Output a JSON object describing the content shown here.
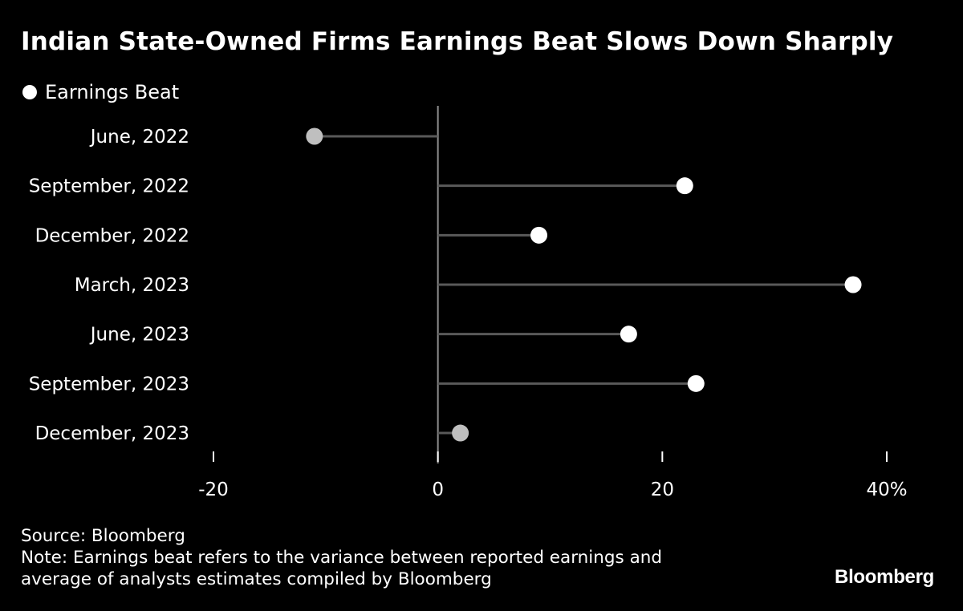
{
  "title": "Indian State-Owned Firms Earnings Beat Slows Down Sharply",
  "legend": {
    "label": "Earnings Beat",
    "color": "#ffffff"
  },
  "footer": {
    "source": "Source: Bloomberg",
    "note_line1": "Note: Earnings beat refers to the variance between reported earnings and",
    "note_line2": "average of analysts estimates compiled by Bloomberg"
  },
  "logo": "Bloomberg",
  "colors": {
    "background": "#000000",
    "dot": "#ffffff",
    "dot_muted": "#bfbfbf",
    "stem": "#595959",
    "axis": "#8c8c8c"
  },
  "chart_data": {
    "type": "lollipop",
    "categories": [
      "June, 2022",
      "September, 2022",
      "December, 2022",
      "March, 2023",
      "June, 2023",
      "September, 2023",
      "December, 2023"
    ],
    "series": [
      {
        "name": "Earnings Beat",
        "values": [
          -11,
          22,
          9,
          37,
          17,
          23,
          2
        ]
      }
    ],
    "muted": [
      true,
      false,
      false,
      false,
      false,
      false,
      true
    ],
    "xlim": [
      -20,
      40
    ],
    "xticks": [
      -20,
      0,
      20,
      40
    ],
    "xtick_labels": [
      "-20",
      "0",
      "20",
      "40%"
    ],
    "orientation": "horizontal",
    "legend_position": "top-left"
  }
}
